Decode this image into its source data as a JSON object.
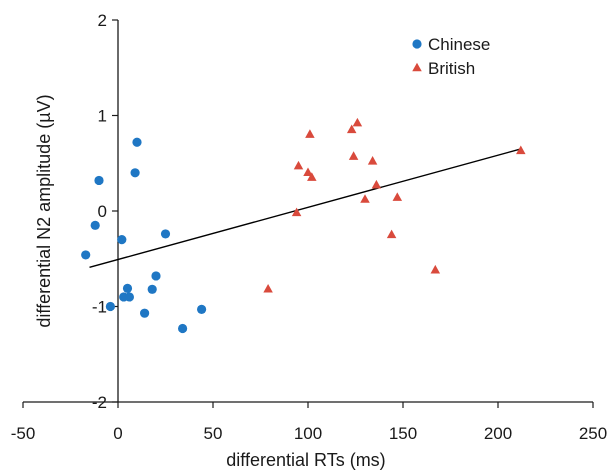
{
  "chart_data": {
    "type": "scatter",
    "xlabel": "differential RTs (ms)",
    "ylabel": "differential N2 amplitude (µV)",
    "xlim": [
      -50,
      250
    ],
    "ylim": [
      -2,
      2
    ],
    "x_ticks": [
      -50,
      0,
      50,
      100,
      150,
      200,
      250
    ],
    "y_ticks": [
      -2,
      -1,
      0,
      1,
      2
    ],
    "legend_position": "top-right",
    "grid": false,
    "series": [
      {
        "name": "Chinese",
        "marker": "circle",
        "color": "#1f77c4",
        "points": [
          {
            "x": -17,
            "y": -0.46
          },
          {
            "x": -12,
            "y": -0.15
          },
          {
            "x": -10,
            "y": 0.32
          },
          {
            "x": -4,
            "y": -1.0
          },
          {
            "x": 2,
            "y": -0.3
          },
          {
            "x": 3,
            "y": -0.9
          },
          {
            "x": 5,
            "y": -0.81
          },
          {
            "x": 6,
            "y": -0.9
          },
          {
            "x": 9,
            "y": 0.4
          },
          {
            "x": 10,
            "y": 0.72
          },
          {
            "x": 14,
            "y": -1.07
          },
          {
            "x": 18,
            "y": -0.82
          },
          {
            "x": 20,
            "y": -0.68
          },
          {
            "x": 25,
            "y": -0.24
          },
          {
            "x": 34,
            "y": -1.23
          },
          {
            "x": 44,
            "y": -1.03
          }
        ]
      },
      {
        "name": "British",
        "marker": "triangle",
        "color": "#d94a3c",
        "points": [
          {
            "x": 79,
            "y": -0.82
          },
          {
            "x": 94,
            "y": -0.02
          },
          {
            "x": 95,
            "y": 0.47
          },
          {
            "x": 100,
            "y": 0.4
          },
          {
            "x": 101,
            "y": 0.8
          },
          {
            "x": 102,
            "y": 0.35
          },
          {
            "x": 123,
            "y": 0.85
          },
          {
            "x": 124,
            "y": 0.57
          },
          {
            "x": 126,
            "y": 0.92
          },
          {
            "x": 130,
            "y": 0.12
          },
          {
            "x": 134,
            "y": 0.52
          },
          {
            "x": 136,
            "y": 0.27
          },
          {
            "x": 144,
            "y": -0.25
          },
          {
            "x": 147,
            "y": 0.14
          },
          {
            "x": 167,
            "y": -0.62
          },
          {
            "x": 212,
            "y": 0.63
          }
        ]
      }
    ],
    "trendline": {
      "x": [
        -15,
        212
      ],
      "y": [
        -0.59,
        0.65
      ],
      "color": "#000000"
    }
  }
}
